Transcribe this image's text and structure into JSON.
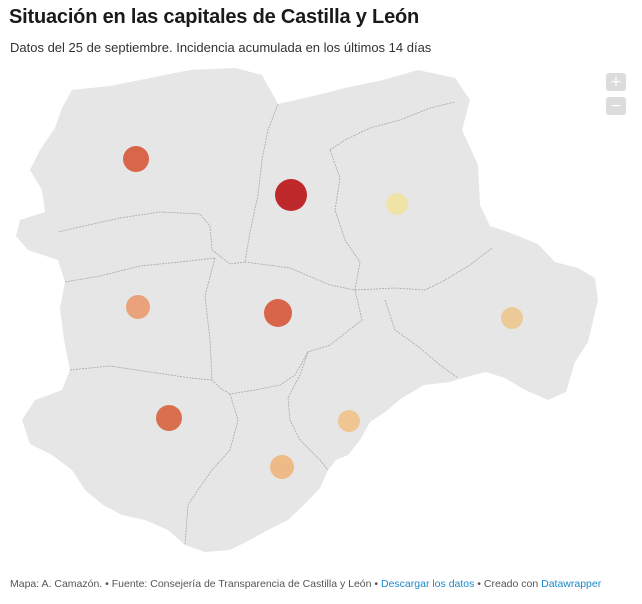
{
  "title": "Situación en las capitales de Castilla y León",
  "subtitle": "Datos del 25 de septiembre. Incidencia acumulada en los últimos 14 días",
  "zoom": {
    "in_label": "+",
    "out_label": "−"
  },
  "footer": {
    "author": "Mapa: A. Camazón.",
    "sep1": " • ",
    "source": "Fuente: Consejería de Transparencia de Castilla y León",
    "sep2": " • ",
    "download_link": "Descargar los datos",
    "sep3": " • ",
    "created_with": "Creado con ",
    "datawrapper_link": "Datawrapper"
  },
  "colors": {
    "region_fill": "#e6e6e6",
    "border": "#a8a8a8",
    "link": "#1a8ac9"
  },
  "markers": [
    {
      "color": "#d9654a"
    },
    {
      "color": "#c0292b"
    },
    {
      "color": "#efe3a8"
    },
    {
      "color": "#e9a27a"
    },
    {
      "color": "#d8644a"
    },
    {
      "color": "#ecca98"
    },
    {
      "color": "#d8704f"
    },
    {
      "color": "#efc592"
    },
    {
      "color": "#edba88"
    }
  ]
}
